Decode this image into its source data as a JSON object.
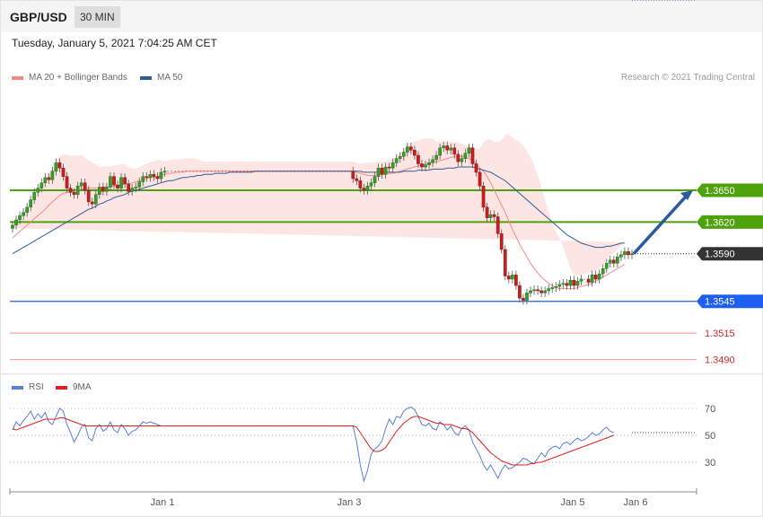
{
  "header": {
    "symbol": "GBP/USD",
    "timeframe": "30 MIN"
  },
  "datetime": "Tuesday, January 5, 2021 7:04:25 AM CET",
  "price_legend": [
    {
      "label": "MA 20 + Bollinger Bands",
      "color": "#f58a83"
    },
    {
      "label": "MA 50",
      "color": "#2f5d95"
    }
  ],
  "credit": "Research © 2021 Trading Central",
  "rsi_legend": [
    {
      "label": "RSI",
      "color": "#5b7fd6"
    },
    {
      "label": "9MA",
      "color": "#e02020"
    }
  ],
  "chart_data": [
    {
      "type": "candlestick",
      "instrument": "GBP/USD",
      "xlabel": "",
      "ylabel": "",
      "x_ticks": [
        "Jan 1",
        "Jan 3",
        "Jan 5",
        "Jan 6"
      ],
      "ylim": [
        1.3482,
        1.3745
      ],
      "last_price": 1.359,
      "levels": [
        {
          "label": "1.3650",
          "value": 1.365,
          "kind": "resistance",
          "color": "#4ea30d"
        },
        {
          "label": "1.3620",
          "value": 1.362,
          "kind": "resistance",
          "color": "#4ea30d"
        },
        {
          "label": "1.3590",
          "value": 1.359,
          "kind": "last",
          "color": "#333333"
        },
        {
          "label": "1.3545",
          "value": 1.3545,
          "kind": "pivot",
          "color": "#1f5ff0"
        },
        {
          "label": "1.3515",
          "value": 1.3515,
          "kind": "support",
          "color": "#d42a2a"
        },
        {
          "label": "1.3490",
          "value": 1.349,
          "kind": "support",
          "color": "#d42a2a"
        }
      ],
      "close": [
        1.3617,
        1.3622,
        1.3626,
        1.3629,
        1.3634,
        1.3641,
        1.3648,
        1.3652,
        1.3657,
        1.3662,
        1.366,
        1.3668,
        1.3676,
        1.3671,
        1.3663,
        1.3652,
        1.3648,
        1.3646,
        1.3654,
        1.3657,
        1.365,
        1.3639,
        1.3637,
        1.3646,
        1.3653,
        1.3649,
        1.3653,
        1.3663,
        1.3655,
        1.3652,
        1.3662,
        1.3656,
        1.3649,
        1.3652,
        1.3653,
        1.3658,
        1.3663,
        1.3662,
        1.3665,
        1.3663,
        1.3661,
        1.3667,
        1.3668,
        1.3668,
        1.3668,
        1.3668,
        1.3668,
        1.3668,
        1.3668,
        1.3668,
        1.3668,
        1.3668,
        1.3668,
        1.3668,
        1.3668,
        1.3668,
        1.3668,
        1.3668,
        1.3668,
        1.3668,
        1.3668,
        1.3668,
        1.3668,
        1.3668,
        1.3668,
        1.3668,
        1.3668,
        1.3668,
        1.3668,
        1.3668,
        1.3668,
        1.3668,
        1.3668,
        1.3668,
        1.3668,
        1.3668,
        1.3668,
        1.3668,
        1.3668,
        1.3668,
        1.3668,
        1.3668,
        1.3668,
        1.3668,
        1.3668,
        1.3668,
        1.3668,
        1.3668,
        1.3668,
        1.3668,
        1.3668,
        1.3668,
        1.3668,
        1.3668,
        1.3661,
        1.3659,
        1.3652,
        1.365,
        1.3654,
        1.3657,
        1.3663,
        1.3671,
        1.3665,
        1.3672,
        1.3671,
        1.3676,
        1.368,
        1.3682,
        1.3686,
        1.3691,
        1.3688,
        1.3683,
        1.3675,
        1.3672,
        1.3674,
        1.3676,
        1.3679,
        1.3683,
        1.369,
        1.3692,
        1.3688,
        1.369,
        1.3684,
        1.3677,
        1.368,
        1.3685,
        1.369,
        1.3675,
        1.3667,
        1.3654,
        1.3634,
        1.3624,
        1.3627,
        1.3625,
        1.3609,
        1.3594,
        1.3569,
        1.3566,
        1.357,
        1.356,
        1.3548,
        1.3546,
        1.3553,
        1.3555,
        1.3556,
        1.3555,
        1.3553,
        1.3555,
        1.3557,
        1.3558,
        1.3559,
        1.3561,
        1.3562,
        1.356,
        1.3565,
        1.356,
        1.3564,
        1.3566,
        1.3566,
        1.3563,
        1.357,
        1.3566,
        1.3571,
        1.3576,
        1.3581,
        1.3584,
        1.3581,
        1.3587,
        1.3589,
        1.3592,
        1.3589,
        1.359
      ],
      "series": [
        {
          "name": "MA 20",
          "color": "#f58a83",
          "values": [
            1.3605,
            1.3608,
            1.3611,
            1.3614,
            1.3617,
            1.362,
            1.3623,
            1.3626,
            1.3629,
            1.3632,
            1.3636,
            1.3639,
            1.3642,
            1.3645,
            1.3647,
            1.3648,
            1.3648,
            1.3649,
            1.365,
            1.3651,
            1.3652,
            1.3652,
            1.3652,
            1.3652,
            1.3652,
            1.3653,
            1.3653,
            1.3653,
            1.3654,
            1.3654,
            1.3655,
            1.3656,
            1.3656,
            1.3657,
            1.3658,
            1.3659,
            1.366,
            1.3661,
            1.3662,
            1.3662,
            1.3663,
            1.3664,
            1.3665,
            1.3666,
            1.3666,
            1.3667,
            1.3667,
            1.3667,
            1.3668,
            1.3668,
            1.3668,
            1.3668,
            1.3668,
            1.3668,
            1.3668,
            1.3668,
            1.3668,
            1.3668,
            1.3668,
            1.3668,
            1.3668,
            1.3668,
            1.3668,
            1.3668,
            1.3668,
            1.3668,
            1.3668,
            1.3668,
            1.3668,
            1.3668,
            1.3668,
            1.3668,
            1.3668,
            1.3668,
            1.3668,
            1.3668,
            1.3668,
            1.3668,
            1.3668,
            1.3668,
            1.3668,
            1.3668,
            1.3668,
            1.3668,
            1.3668,
            1.3668,
            1.3668,
            1.3668,
            1.3668,
            1.3668,
            1.3668,
            1.3668,
            1.3668,
            1.3668,
            1.3668,
            1.3667,
            1.3666,
            1.3665,
            1.3664,
            1.3664,
            1.3664,
            1.3665,
            1.3665,
            1.3665,
            1.3666,
            1.3666,
            1.3667,
            1.3668,
            1.3669,
            1.367,
            1.3671,
            1.3672,
            1.3673,
            1.3674,
            1.3675,
            1.3676,
            1.3677,
            1.3677,
            1.3678,
            1.3679,
            1.368,
            1.3681,
            1.3682,
            1.3682,
            1.3682,
            1.3681,
            1.368,
            1.3678,
            1.3675,
            1.3671,
            1.3668,
            1.3663,
            1.3657,
            1.365,
            1.3643,
            1.3636,
            1.3629,
            1.3621,
            1.3613,
            1.3606,
            1.3599,
            1.3593,
            1.3587,
            1.3581,
            1.3576,
            1.3572,
            1.3568,
            1.3565,
            1.3562,
            1.356,
            1.3558,
            1.3557,
            1.3557,
            1.3557,
            1.3557,
            1.3557,
            1.3558,
            1.3559,
            1.356,
            1.3561,
            1.3562,
            1.3564,
            1.3566,
            1.3568,
            1.357,
            1.3572,
            1.3574,
            1.3576,
            1.3578,
            1.358
          ]
        },
        {
          "name": "MA 50",
          "color": "#2f5d95",
          "values": [
            1.359,
            1.3592,
            1.3594,
            1.3596,
            1.3598,
            1.36,
            1.3602,
            1.3604,
            1.3606,
            1.3608,
            1.361,
            1.3612,
            1.3614,
            1.3616,
            1.3618,
            1.362,
            1.3622,
            1.3624,
            1.3626,
            1.3628,
            1.363,
            1.3632,
            1.3633,
            1.3635,
            1.3637,
            1.3638,
            1.364,
            1.3641,
            1.3643,
            1.3644,
            1.3645,
            1.3646,
            1.3648,
            1.3649,
            1.365,
            1.3651,
            1.3652,
            1.3653,
            1.3654,
            1.3655,
            1.3656,
            1.3657,
            1.3658,
            1.3659,
            1.3659,
            1.366,
            1.3661,
            1.3662,
            1.3662,
            1.3663,
            1.3663,
            1.3664,
            1.3664,
            1.3665,
            1.3665,
            1.3665,
            1.3666,
            1.3666,
            1.3666,
            1.3666,
            1.3667,
            1.3667,
            1.3667,
            1.3667,
            1.3667,
            1.3667,
            1.3667,
            1.3668,
            1.3668,
            1.3668,
            1.3668,
            1.3668,
            1.3668,
            1.3668,
            1.3668,
            1.3668,
            1.3668,
            1.3668,
            1.3668,
            1.3668,
            1.3668,
            1.3668,
            1.3668,
            1.3668,
            1.3668,
            1.3668,
            1.3668,
            1.3668,
            1.3668,
            1.3668,
            1.3668,
            1.3668,
            1.3668,
            1.3668,
            1.3668,
            1.3668,
            1.3668,
            1.3667,
            1.3667,
            1.3667,
            1.3667,
            1.3667,
            1.3667,
            1.3667,
            1.3667,
            1.3667,
            1.3667,
            1.3667,
            1.3668,
            1.3668,
            1.3668,
            1.3668,
            1.3669,
            1.3669,
            1.3669,
            1.3669,
            1.367,
            1.367,
            1.367,
            1.367,
            1.3671,
            1.3671,
            1.3671,
            1.3672,
            1.3672,
            1.3672,
            1.3672,
            1.3672,
            1.3671,
            1.367,
            1.3669,
            1.3668,
            1.3667,
            1.3665,
            1.3663,
            1.3661,
            1.3659,
            1.3656,
            1.3653,
            1.365,
            1.3647,
            1.3644,
            1.3641,
            1.3638,
            1.3635,
            1.3632,
            1.3629,
            1.3626,
            1.3623,
            1.362,
            1.3617,
            1.3614,
            1.3611,
            1.3608,
            1.3606,
            1.3604,
            1.3602,
            1.36,
            1.3599,
            1.3598,
            1.3597,
            1.3596,
            1.3596,
            1.3596,
            1.3597,
            1.3597,
            1.3598,
            1.3599,
            1.36,
            1.36
          ]
        }
      ],
      "forecast": {
        "from": 1.359,
        "to": 1.365,
        "direction": "up"
      }
    },
    {
      "type": "line",
      "title": "",
      "y_ticks": [
        70,
        50,
        30
      ],
      "ylim": [
        10,
        80
      ],
      "series": [
        {
          "name": "RSI",
          "color": "#5b7fd6",
          "values": [
            54,
            60,
            57,
            61,
            64,
            68,
            62,
            66,
            63,
            67,
            60,
            58,
            64,
            70,
            68,
            58,
            52,
            45,
            50,
            56,
            58,
            48,
            46,
            55,
            58,
            53,
            55,
            60,
            54,
            52,
            58,
            55,
            50,
            53,
            54,
            57,
            60,
            59,
            60,
            59,
            58,
            57,
            57,
            57,
            57,
            57,
            57,
            57,
            57,
            57,
            57,
            57,
            57,
            57,
            57,
            57,
            57,
            57,
            57,
            57,
            57,
            57,
            57,
            57,
            57,
            57,
            57,
            57,
            57,
            57,
            57,
            57,
            57,
            57,
            57,
            57,
            57,
            57,
            57,
            57,
            57,
            57,
            57,
            57,
            57,
            57,
            57,
            57,
            57,
            57,
            57,
            57,
            57,
            57,
            57,
            45,
            28,
            16,
            24,
            36,
            40,
            42,
            46,
            55,
            62,
            58,
            64,
            63,
            68,
            70,
            71,
            69,
            64,
            58,
            57,
            59,
            55,
            54,
            60,
            58,
            54,
            57,
            52,
            50,
            55,
            57,
            54,
            45,
            40,
            35,
            28,
            24,
            28,
            23,
            18,
            24,
            28,
            25,
            26,
            28,
            30,
            33,
            32,
            30,
            29,
            33,
            37,
            34,
            39,
            41,
            42,
            40,
            44,
            45,
            43,
            46,
            48,
            46,
            47,
            49,
            52,
            50,
            51,
            54,
            56,
            53,
            52
          ]
        },
        {
          "name": "9MA",
          "color": "#e02020",
          "values": [
            55,
            54,
            55,
            56,
            57,
            58,
            59,
            60,
            61,
            62,
            62,
            62,
            62,
            63,
            63,
            62,
            61,
            60,
            59,
            58,
            57,
            57,
            57,
            57,
            57,
            57,
            57,
            57,
            57,
            57,
            57,
            57,
            57,
            57,
            57,
            57,
            57,
            57,
            57,
            57,
            57,
            57,
            57,
            57,
            57,
            57,
            57,
            57,
            57,
            57,
            57,
            57,
            57,
            57,
            57,
            57,
            57,
            57,
            57,
            57,
            57,
            57,
            57,
            57,
            57,
            57,
            57,
            57,
            57,
            57,
            57,
            57,
            57,
            57,
            57,
            57,
            57,
            57,
            57,
            57,
            57,
            57,
            57,
            57,
            57,
            57,
            57,
            57,
            57,
            57,
            57,
            57,
            57,
            57,
            57,
            56,
            52,
            48,
            44,
            40,
            38,
            38,
            39,
            41,
            45,
            49,
            53,
            56,
            59,
            61,
            63,
            64,
            64,
            63,
            62,
            61,
            60,
            59,
            59,
            58,
            58,
            58,
            57,
            56,
            55,
            55,
            54,
            52,
            49,
            46,
            43,
            40,
            37,
            35,
            33,
            31,
            30,
            29,
            28,
            28,
            28,
            28,
            28,
            29,
            29,
            30,
            30,
            31,
            32,
            33,
            34,
            35,
            36,
            37,
            38,
            39,
            40,
            41,
            42,
            43,
            44,
            45,
            46,
            47,
            48,
            49,
            50
          ]
        }
      ]
    }
  ]
}
